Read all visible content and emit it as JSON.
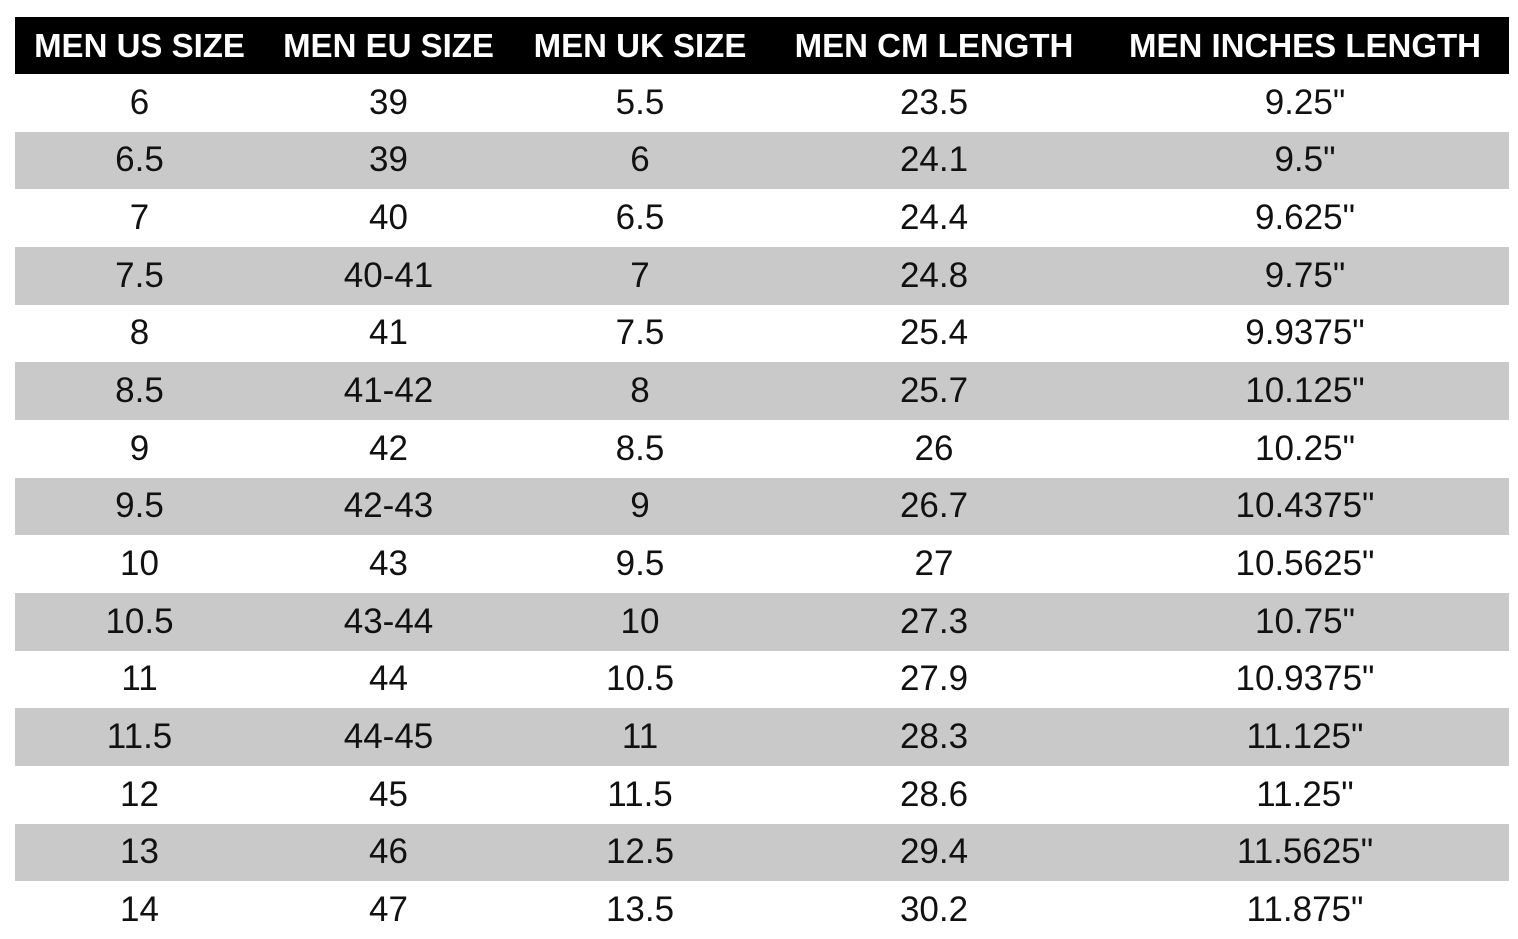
{
  "table": {
    "headers": [
      "MEN US SIZE",
      "MEN EU SIZE",
      "MEN UK SIZE",
      "MEN CM LENGTH",
      "MEN INCHES LENGTH"
    ],
    "rows": [
      [
        "6",
        "39",
        "5.5",
        "23.5",
        "9.25\""
      ],
      [
        "6.5",
        "39",
        "6",
        "24.1",
        "9.5\""
      ],
      [
        "7",
        "40",
        "6.5",
        "24.4",
        "9.625\""
      ],
      [
        "7.5",
        "40-41",
        "7",
        "24.8",
        "9.75\""
      ],
      [
        "8",
        "41",
        "7.5",
        "25.4",
        "9.9375\""
      ],
      [
        "8.5",
        "41-42",
        "8",
        "25.7",
        "10.125\""
      ],
      [
        "9",
        "42",
        "8.5",
        "26",
        "10.25\""
      ],
      [
        "9.5",
        "42-43",
        "9",
        "26.7",
        "10.4375\""
      ],
      [
        "10",
        "43",
        "9.5",
        "27",
        "10.5625\""
      ],
      [
        "10.5",
        "43-44",
        "10",
        "27.3",
        "10.75\""
      ],
      [
        "11",
        "44",
        "10.5",
        "27.9",
        "10.9375\""
      ],
      [
        "11.5",
        "44-45",
        "11",
        "28.3",
        "11.125\""
      ],
      [
        "12",
        "45",
        "11.5",
        "28.6",
        "11.25\""
      ],
      [
        "13",
        "46",
        "12.5",
        "29.4",
        "11.5625\""
      ],
      [
        "14",
        "47",
        "13.5",
        "30.2",
        "11.875\""
      ]
    ]
  }
}
